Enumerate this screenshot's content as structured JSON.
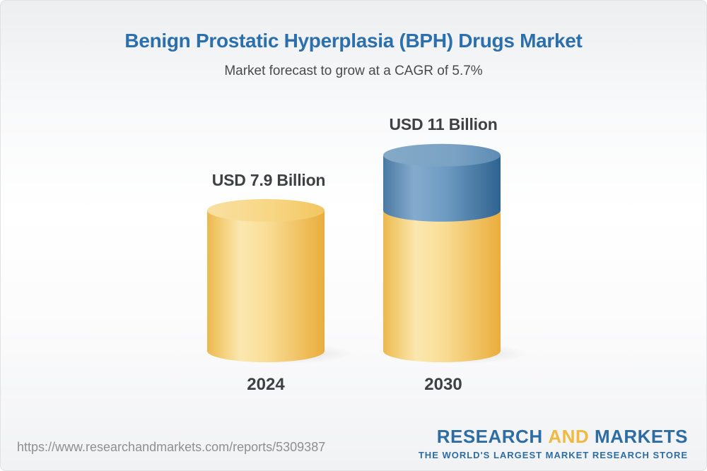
{
  "theme": {
    "title_blue": "#2B6FAC",
    "subtitle_gray": "#4A4A4A",
    "text_dark": "#3E4043",
    "logo_blue": "#2E6DA3",
    "logo_gold": "#F0B93F",
    "url_gray": "#8F8F8F"
  },
  "header": {
    "title": "Benign Prostatic Hyperplasia (BPH) Drugs Market",
    "subtitle": "Market forecast to grow at a CAGR of 5.7%"
  },
  "chart_data": {
    "type": "bar",
    "variant": "3d-stacked-cylinder",
    "categories": [
      "2024",
      "2030"
    ],
    "values": [
      7.9,
      11
    ],
    "value_labels": [
      "USD 7.9 Billion",
      "USD 11 Billion"
    ],
    "unit": "USD Billion",
    "cagr_percent": 5.7,
    "series": [
      {
        "name": "base-market",
        "values": [
          7.9,
          7.9
        ],
        "color": "#F3CD6E"
      },
      {
        "name": "forecast-growth",
        "values": [
          0,
          3.1
        ],
        "color": "#5985B1"
      }
    ],
    "axes": "none",
    "grid": false,
    "legend_position": "none"
  },
  "footer": {
    "source_url": "https://www.researchandmarkets.com/reports/5309387",
    "logo": {
      "word1": "RESEARCH",
      "word2": "AND",
      "word3": "MARKETS",
      "tagline": "THE WORLD'S LARGEST MARKET RESEARCH STORE"
    }
  }
}
